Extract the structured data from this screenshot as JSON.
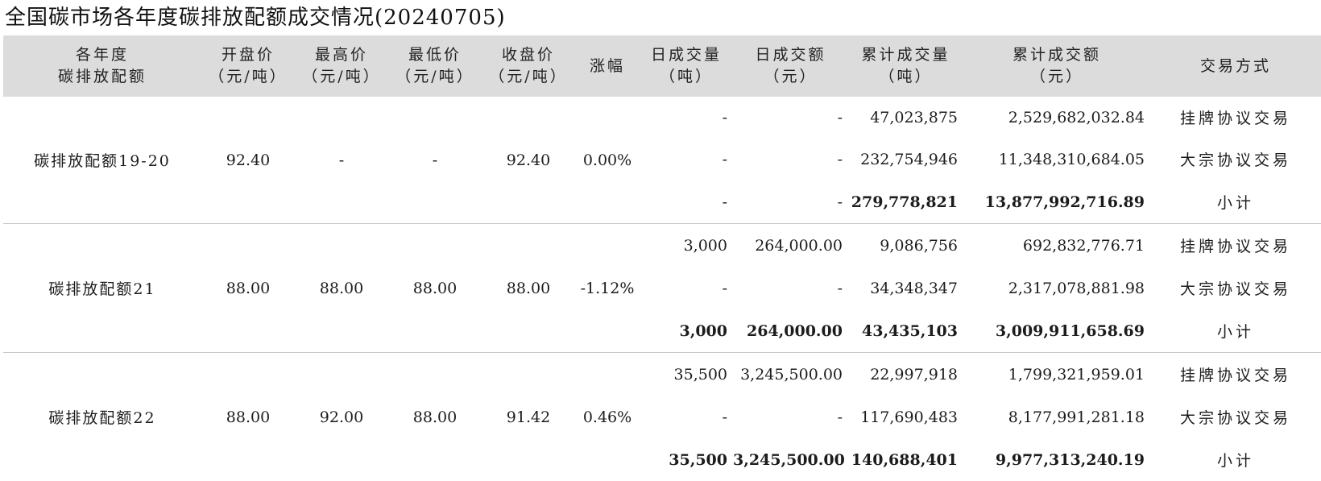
{
  "title": "全国碳市场各年度碳排放配额成交情况(20240705)",
  "headers": {
    "year_quota": [
      "各年度",
      "碳排放配额"
    ],
    "open_price": [
      "开盘价",
      "（元/吨）"
    ],
    "high_price": [
      "最高价",
      "（元/吨）"
    ],
    "low_price": [
      "最低价",
      "（元/吨）"
    ],
    "close_price": [
      "收盘价",
      "（元/吨）"
    ],
    "change": [
      "涨幅"
    ],
    "daily_volume": [
      "日成交量",
      "（吨）"
    ],
    "daily_amount": [
      "日成交额",
      "（元）"
    ],
    "cum_volume": [
      "累计成交量",
      "（吨）"
    ],
    "cum_amount": [
      "累计成交额",
      "（元）"
    ],
    "trade_mode": [
      "交易方式"
    ]
  },
  "groups": [
    {
      "name": "碳排放配额19-20",
      "open": "92.40",
      "high": "-",
      "low": "-",
      "close": "92.40",
      "change": "0.00%",
      "rows": [
        {
          "daily_volume": "-",
          "daily_amount": "-",
          "cum_volume": "47,023,875",
          "cum_amount": "2,529,682,032.84",
          "mode": "挂牌协议交易"
        },
        {
          "daily_volume": "-",
          "daily_amount": "-",
          "cum_volume": "232,754,946",
          "cum_amount": "11,348,310,684.05",
          "mode": "大宗协议交易"
        },
        {
          "daily_volume": "-",
          "daily_amount": "-",
          "cum_volume": "279,778,821",
          "cum_amount": "13,877,992,716.89",
          "mode": "小计"
        }
      ]
    },
    {
      "name": "碳排放配额21",
      "open": "88.00",
      "high": "88.00",
      "low": "88.00",
      "close": "88.00",
      "change": "-1.12%",
      "rows": [
        {
          "daily_volume": "3,000",
          "daily_amount": "264,000.00",
          "cum_volume": "9,086,756",
          "cum_amount": "692,832,776.71",
          "mode": "挂牌协议交易"
        },
        {
          "daily_volume": "-",
          "daily_amount": "-",
          "cum_volume": "34,348,347",
          "cum_amount": "2,317,078,881.98",
          "mode": "大宗协议交易"
        },
        {
          "daily_volume": "3,000",
          "daily_amount": "264,000.00",
          "cum_volume": "43,435,103",
          "cum_amount": "3,009,911,658.69",
          "mode": "小计"
        }
      ]
    },
    {
      "name": "碳排放配额22",
      "open": "88.00",
      "high": "92.00",
      "low": "88.00",
      "close": "91.42",
      "change": "0.46%",
      "rows": [
        {
          "daily_volume": "35,500",
          "daily_amount": "3,245,500.00",
          "cum_volume": "22,997,918",
          "cum_amount": "1,799,321,959.01",
          "mode": "挂牌协议交易"
        },
        {
          "daily_volume": "-",
          "daily_amount": "-",
          "cum_volume": "117,690,483",
          "cum_amount": "8,177,991,281.18",
          "mode": "大宗协议交易"
        },
        {
          "daily_volume": "35,500",
          "daily_amount": "3,245,500.00",
          "cum_volume": "140,688,401",
          "cum_amount": "9,977,313,240.19",
          "mode": "小计"
        }
      ]
    }
  ]
}
